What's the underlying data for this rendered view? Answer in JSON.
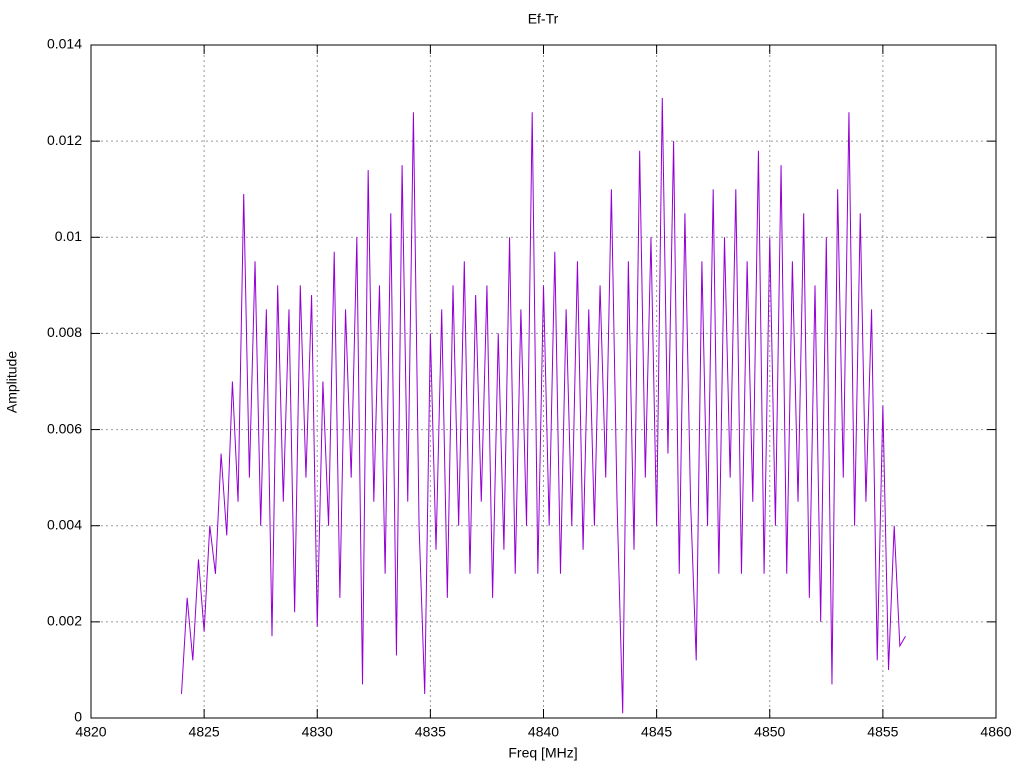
{
  "chart_data": {
    "type": "line",
    "title": "Ef-Tr",
    "x_label": "Freq [MHz]",
    "y_label": "Amplitude",
    "color": "#9400d3",
    "grid": true,
    "xlim": [
      4820,
      4860
    ],
    "xticks": [
      4820,
      4825,
      4830,
      4835,
      4840,
      4845,
      4850,
      4855,
      4860
    ],
    "ylim": [
      0,
      0.014
    ],
    "yticks": [
      0,
      0.002,
      0.004,
      0.006,
      0.008,
      0.01,
      0.012,
      0.014
    ],
    "x": [
      4824,
      4824.25,
      4824.5,
      4824.75,
      4825,
      4825.25,
      4825.5,
      4825.75,
      4826,
      4826.25,
      4826.5,
      4826.75,
      4827,
      4827.25,
      4827.5,
      4827.75,
      4828,
      4828.25,
      4828.5,
      4828.75,
      4829,
      4829.25,
      4829.5,
      4829.75,
      4830,
      4830.25,
      4830.5,
      4830.75,
      4831,
      4831.25,
      4831.5,
      4831.75,
      4832,
      4832.25,
      4832.5,
      4832.75,
      4833,
      4833.25,
      4833.5,
      4833.75,
      4834,
      4834.25,
      4834.5,
      4834.75,
      4835,
      4835.25,
      4835.5,
      4835.75,
      4836,
      4836.25,
      4836.5,
      4836.75,
      4837,
      4837.25,
      4837.5,
      4837.75,
      4838,
      4838.25,
      4838.5,
      4838.75,
      4839,
      4839.25,
      4839.5,
      4839.75,
      4840,
      4840.25,
      4840.5,
      4840.75,
      4841,
      4841.25,
      4841.5,
      4841.75,
      4842,
      4842.25,
      4842.5,
      4842.75,
      4843,
      4843.25,
      4843.5,
      4843.75,
      4844,
      4844.25,
      4844.5,
      4844.75,
      4845,
      4845.25,
      4845.5,
      4845.75,
      4846,
      4846.25,
      4846.5,
      4846.75,
      4847,
      4847.25,
      4847.5,
      4847.75,
      4848,
      4848.25,
      4848.5,
      4848.75,
      4849,
      4849.25,
      4849.5,
      4849.75,
      4850,
      4850.25,
      4850.5,
      4850.75,
      4851,
      4851.25,
      4851.5,
      4851.75,
      4852,
      4852.25,
      4852.5,
      4852.75,
      4853,
      4853.25,
      4853.5,
      4853.75,
      4854,
      4854.25,
      4854.5,
      4854.75,
      4855,
      4855.25,
      4855.5,
      4855.75,
      4856
    ],
    "values": [
      0.0005,
      0.0025,
      0.0012,
      0.0033,
      0.0018,
      0.004,
      0.003,
      0.0055,
      0.0038,
      0.007,
      0.0045,
      0.0109,
      0.005,
      0.0095,
      0.004,
      0.0085,
      0.0017,
      0.009,
      0.0045,
      0.0085,
      0.0022,
      0.009,
      0.005,
      0.0088,
      0.0019,
      0.007,
      0.004,
      0.0097,
      0.0025,
      0.0085,
      0.005,
      0.01,
      0.0007,
      0.0114,
      0.0045,
      0.009,
      0.003,
      0.0105,
      0.0013,
      0.0115,
      0.0045,
      0.0126,
      0.004,
      0.0005,
      0.008,
      0.0035,
      0.0085,
      0.0025,
      0.009,
      0.004,
      0.0095,
      0.003,
      0.0088,
      0.0045,
      0.009,
      0.0025,
      0.008,
      0.0035,
      0.01,
      0.003,
      0.0085,
      0.004,
      0.0126,
      0.003,
      0.009,
      0.004,
      0.0097,
      0.003,
      0.0085,
      0.004,
      0.0095,
      0.0035,
      0.0085,
      0.004,
      0.009,
      0.005,
      0.011,
      0.0045,
      0.0001,
      0.0095,
      0.0035,
      0.0118,
      0.005,
      0.01,
      0.004,
      0.0129,
      0.0055,
      0.012,
      0.003,
      0.0105,
      0.0045,
      0.0012,
      0.0095,
      0.004,
      0.011,
      0.003,
      0.01,
      0.005,
      0.011,
      0.003,
      0.0095,
      0.0045,
      0.0118,
      0.003,
      0.01,
      0.004,
      0.0115,
      0.003,
      0.0095,
      0.0045,
      0.0105,
      0.0025,
      0.009,
      0.002,
      0.01,
      0.0007,
      0.011,
      0.005,
      0.0126,
      0.004,
      0.0105,
      0.0045,
      0.0085,
      0.0012,
      0.0065,
      0.001,
      0.004,
      0.0015,
      0.0017
    ]
  }
}
